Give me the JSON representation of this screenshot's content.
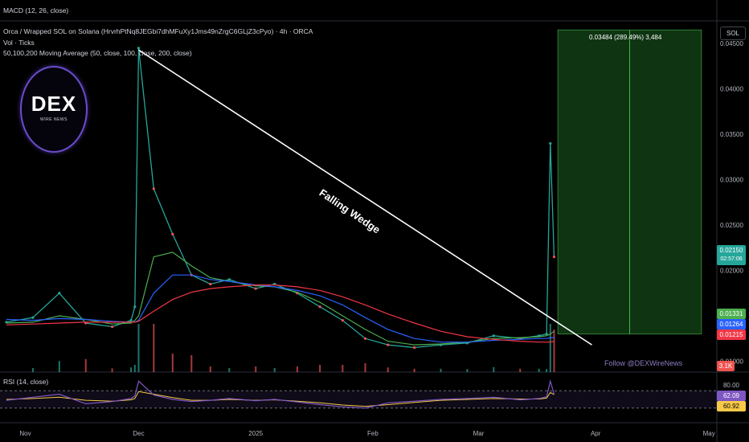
{
  "header": {
    "macd_label": "MACD (12, 26, close)",
    "symbol_title": "Orca / Wrapped SOL on Solana (HrvrhPtNq8JEGbi7dhMFuXy1Jms49nZrgC6GLjZ3cPyo) · 4h · ORCA",
    "volume_label": "Vol · Ticks",
    "ma_label": "50,100,200 Moving Average (50, close, 100, close, 200, close)",
    "rsi_label": "RSI (14, close)"
  },
  "currency_button": "SOL",
  "logo": {
    "text": "DEX",
    "subtext": "WIRE NEWS"
  },
  "annotations": {
    "pattern_label": "Falling Wedge",
    "follow_text": "Follow @DEXWireNews",
    "target_label": "0.03484 (289.49%) 3,484"
  },
  "price_badges": {
    "current_price": "0.02150",
    "countdown": "02:57:06",
    "ma50": "0.01331",
    "ma100": "0.01264",
    "ma200": "0.01215",
    "volume": "3.1K"
  },
  "rsi_badges": {
    "upper": "80.00",
    "value": "62.09",
    "ma": "60.92"
  },
  "colors": {
    "background": "#000000",
    "candle_up": "#26a69a",
    "candle_down": "#ef5350",
    "ma50": "#4caf50",
    "ma100": "#2962ff",
    "ma200": "#f23645",
    "rsi": "#7e57c2",
    "rsi_ma": "#f7c948",
    "target_zone": "#1b5e20",
    "follow_text": "#8e7cc3"
  },
  "chart_data": {
    "type": "line",
    "title": "Orca / Wrapped SOL on Solana · 4h · ORCA",
    "xlabel": "",
    "ylabel": "SOL",
    "x_tick_labels": [
      "Nov",
      "Dec",
      "2025",
      "Feb",
      "Mar",
      "Apr",
      "May"
    ],
    "y_tick_labels": [
      "0.01000",
      "0.01500",
      "0.02000",
      "0.02500",
      "0.03000",
      "0.03500",
      "0.04000",
      "0.04500"
    ],
    "ylim": [
      0.0088,
      0.0475
    ],
    "x": [
      "2024-10-27",
      "2024-11-03",
      "2024-11-10",
      "2024-11-17",
      "2024-11-24",
      "2024-11-29",
      "2024-11-30",
      "2024-12-01",
      "2024-12-05",
      "2024-12-10",
      "2024-12-15",
      "2024-12-20",
      "2024-12-25",
      "2025-01-01",
      "2025-01-06",
      "2025-01-12",
      "2025-01-18",
      "2025-01-24",
      "2025-01-30",
      "2025-02-05",
      "2025-02-12",
      "2025-02-19",
      "2025-02-26",
      "2025-03-05",
      "2025-03-12",
      "2025-03-17",
      "2025-03-19",
      "2025-03-20",
      "2025-03-21"
    ],
    "series": [
      {
        "name": "Price",
        "values": [
          0.0143,
          0.0148,
          0.0175,
          0.0142,
          0.0138,
          0.0145,
          0.016,
          0.0445,
          0.029,
          0.024,
          0.0195,
          0.0185,
          0.019,
          0.018,
          0.0185,
          0.0175,
          0.016,
          0.0145,
          0.0125,
          0.0118,
          0.0115,
          0.0118,
          0.012,
          0.0128,
          0.0125,
          0.0128,
          0.013,
          0.034,
          0.0215
        ]
      },
      {
        "name": "MA50",
        "values": [
          0.0142,
          0.0143,
          0.015,
          0.0146,
          0.0141,
          0.0142,
          0.0145,
          0.015,
          0.0215,
          0.022,
          0.0205,
          0.0192,
          0.0188,
          0.0183,
          0.0182,
          0.0176,
          0.0165,
          0.015,
          0.0135,
          0.0122,
          0.0118,
          0.0119,
          0.0121,
          0.0125,
          0.0126,
          0.0127,
          0.0128,
          0.013,
          0.0133
        ]
      },
      {
        "name": "MA100",
        "values": [
          0.0146,
          0.0145,
          0.0147,
          0.0146,
          0.0144,
          0.0143,
          0.0143,
          0.0145,
          0.0175,
          0.0195,
          0.0195,
          0.019,
          0.0188,
          0.0184,
          0.0182,
          0.0178,
          0.0172,
          0.0162,
          0.0148,
          0.0135,
          0.0125,
          0.0121,
          0.0121,
          0.0123,
          0.0124,
          0.0125,
          0.0125,
          0.0126,
          0.0126
        ]
      },
      {
        "name": "MA200",
        "values": [
          0.014,
          0.0141,
          0.0142,
          0.0143,
          0.0143,
          0.0143,
          0.0143,
          0.0144,
          0.0155,
          0.0168,
          0.0176,
          0.018,
          0.0182,
          0.0184,
          0.0184,
          0.0182,
          0.0178,
          0.0171,
          0.0162,
          0.0152,
          0.0142,
          0.0133,
          0.0127,
          0.0124,
          0.0122,
          0.0121,
          0.0121,
          0.0121,
          0.0122
        ]
      }
    ],
    "rsi": {
      "label": "RSI (14, close)",
      "levels": [
        30,
        70
      ],
      "values": [
        48,
        55,
        62,
        40,
        45,
        52,
        58,
        92,
        60,
        50,
        45,
        48,
        52,
        47,
        50,
        44,
        38,
        33,
        30,
        42,
        46,
        50,
        52,
        55,
        49,
        52,
        56,
        92,
        62
      ],
      "ma": [
        50,
        52,
        55,
        48,
        46,
        49,
        52,
        68,
        62,
        54,
        48,
        48,
        50,
        48,
        49,
        46,
        42,
        37,
        34,
        38,
        43,
        48,
        50,
        52,
        51,
        51,
        53,
        66,
        61
      ]
    },
    "trendline": {
      "start": [
        "2024-12-01",
        0.0443
      ],
      "end": [
        "2025-03-31",
        0.0118
      ]
    },
    "target_zone": {
      "start_x": "2025-03-22",
      "end_x": "2025-04-29",
      "y_low": 0.013,
      "y_high": 0.0465
    },
    "grid": false,
    "legend": "top-left"
  }
}
